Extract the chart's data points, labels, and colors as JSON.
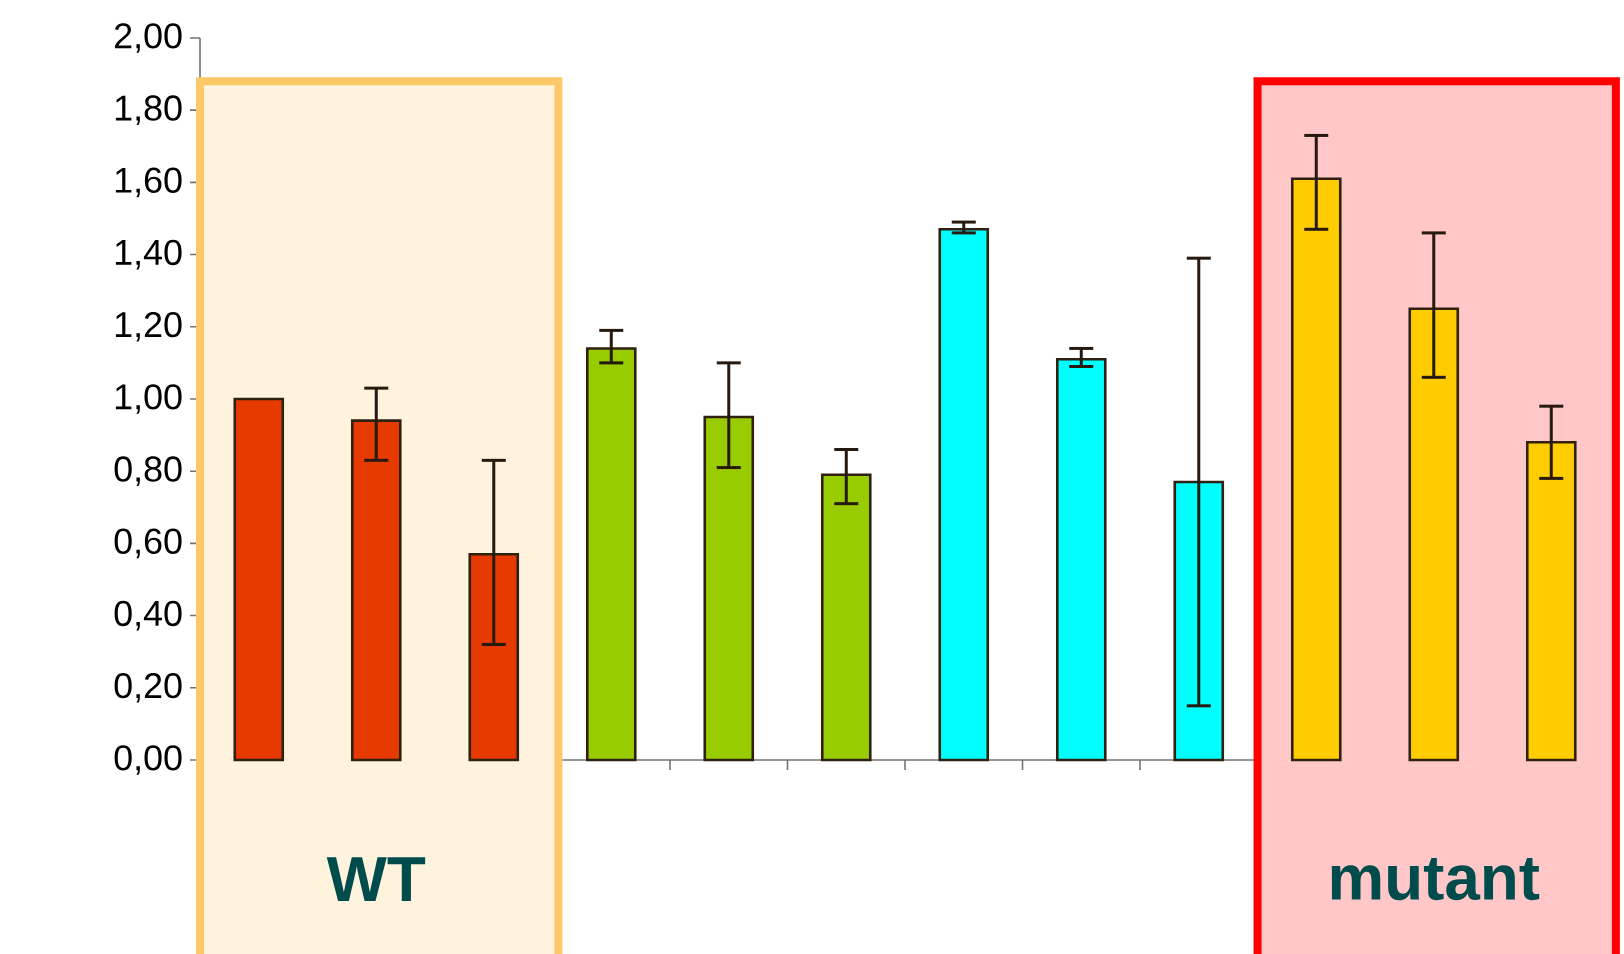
{
  "chart_data": {
    "type": "bar",
    "categories": [
      null,
      null,
      null,
      null,
      null,
      null,
      null,
      null,
      null,
      null,
      null,
      null
    ],
    "values": [
      1.0,
      0.94,
      0.57,
      1.14,
      0.95,
      0.79,
      1.47,
      1.11,
      0.77,
      1.61,
      1.25,
      0.88
    ],
    "errors": [
      null,
      [
        0.83,
        1.03
      ],
      [
        0.32,
        0.83
      ],
      [
        1.1,
        1.19
      ],
      [
        0.81,
        1.1
      ],
      [
        0.71,
        0.86
      ],
      [
        1.46,
        1.49
      ],
      [
        1.09,
        1.14
      ],
      [
        0.15,
        1.39
      ],
      [
        1.47,
        1.73
      ],
      [
        1.06,
        1.46
      ],
      [
        0.78,
        0.98
      ]
    ],
    "colors": [
      "#e63a00",
      "#e63a00",
      "#e63a00",
      "#99cc00",
      "#99cc00",
      "#99cc00",
      "#00ffff",
      "#00ffff",
      "#00ffff",
      "#ffcc00",
      "#ffcc00",
      "#ffcc00"
    ],
    "ylim": [
      0,
      2
    ],
    "yticks": [
      {
        "value": 0,
        "label": "0,00"
      },
      {
        "value": 0.2,
        "label": "0,20"
      },
      {
        "value": 0.4,
        "label": "0,40"
      },
      {
        "value": 0.6,
        "label": "0,60"
      },
      {
        "value": 0.8,
        "label": "0,80"
      },
      {
        "value": 1.0,
        "label": "1,00"
      },
      {
        "value": 1.2,
        "label": "1,20"
      },
      {
        "value": 1.4,
        "label": "1,40"
      },
      {
        "value": 1.6,
        "label": "1,60"
      },
      {
        "value": 1.8,
        "label": "1,80"
      },
      {
        "value": 2.0,
        "label": "2,00"
      }
    ],
    "annotations": [
      "WT",
      "mutant"
    ],
    "tick_labels": "y",
    "grid": false
  }
}
